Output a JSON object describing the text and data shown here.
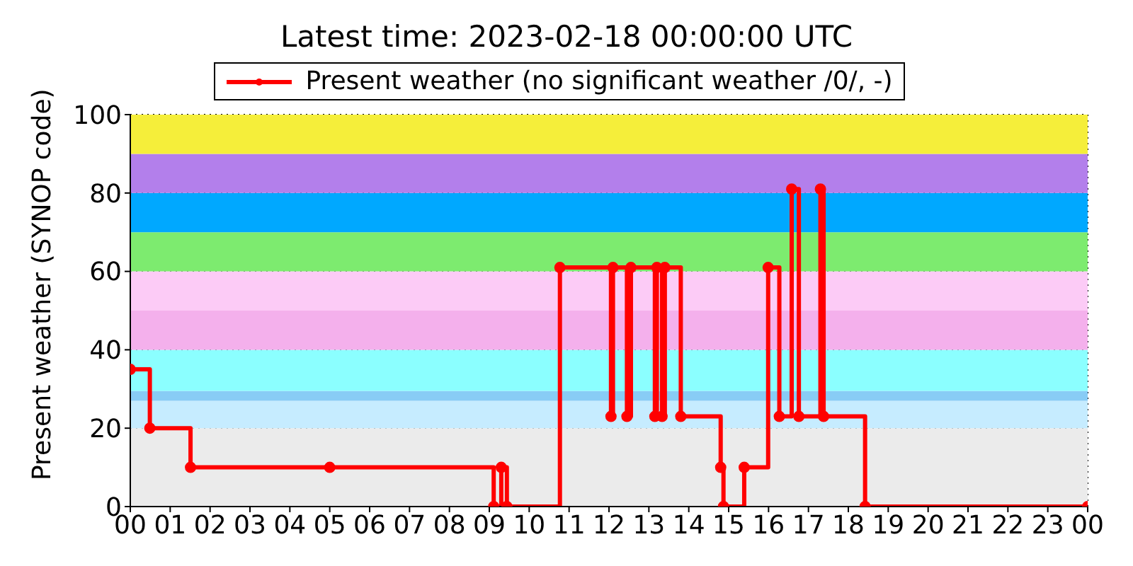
{
  "chart_data": {
    "type": "step",
    "title": "Latest time: 2023-02-18 00:00:00 UTC",
    "ylabel": "Present weather (SYNOP code)",
    "xlim": [
      0,
      24
    ],
    "xticks": [
      {
        "value": 0,
        "label": "00"
      },
      {
        "value": 1,
        "label": "01"
      },
      {
        "value": 2,
        "label": "02"
      },
      {
        "value": 3,
        "label": "03"
      },
      {
        "value": 4,
        "label": "04"
      },
      {
        "value": 5,
        "label": "05"
      },
      {
        "value": 6,
        "label": "06"
      },
      {
        "value": 7,
        "label": "07"
      },
      {
        "value": 8,
        "label": "08"
      },
      {
        "value": 9,
        "label": "09"
      },
      {
        "value": 10,
        "label": "10"
      },
      {
        "value": 11,
        "label": "11"
      },
      {
        "value": 12,
        "label": "12"
      },
      {
        "value": 13,
        "label": "13"
      },
      {
        "value": 14,
        "label": "14"
      },
      {
        "value": 15,
        "label": "15"
      },
      {
        "value": 16,
        "label": "16"
      },
      {
        "value": 17,
        "label": "17"
      },
      {
        "value": 18,
        "label": "18"
      },
      {
        "value": 19,
        "label": "19"
      },
      {
        "value": 20,
        "label": "20"
      },
      {
        "value": 21,
        "label": "21"
      },
      {
        "value": 22,
        "label": "22"
      },
      {
        "value": 23,
        "label": "23"
      },
      {
        "value": 24,
        "label": "00"
      }
    ],
    "ylim": [
      0,
      100
    ],
    "yticks": [
      0,
      20,
      40,
      60,
      80,
      100
    ],
    "grid": true,
    "legend": "top",
    "marker": "circle",
    "line_style": "solid",
    "series": [
      {
        "name": "Present weather (no significant weather /0/, -)",
        "color": "#ff0000",
        "x": [
          0,
          0.49,
          1.51,
          5,
          9.11,
          9.3,
          9.44,
          10.77,
          12.05,
          12.1,
          12.45,
          12.55,
          13.15,
          13.2,
          13.33,
          13.4,
          13.8,
          14.8,
          14.87,
          15.39,
          15.99,
          16.27,
          16.58,
          16.76,
          17.3,
          17.38,
          18.42,
          24
        ],
        "values": [
          35,
          20,
          10,
          10,
          0,
          10,
          0,
          61,
          23,
          61,
          23,
          61,
          23,
          61,
          23,
          61,
          23,
          10,
          0,
          10,
          61,
          23,
          81,
          23,
          81,
          23,
          0,
          0
        ]
      }
    ],
    "bands": [
      {
        "axis": "y",
        "from": 0,
        "to": 20,
        "label": null,
        "color": "#ebebeb"
      },
      {
        "axis": "y",
        "from": 20,
        "to": 27,
        "label": null,
        "color": "#c6ecff"
      },
      {
        "axis": "y",
        "from": 27,
        "to": 29.5,
        "label": null,
        "color": "#88ccf5"
      },
      {
        "axis": "y",
        "from": 29.5,
        "to": 40,
        "label": null,
        "color": "#8bffff"
      },
      {
        "axis": "y",
        "from": 40,
        "to": 50,
        "label": null,
        "color": "#f4b0ec"
      },
      {
        "axis": "y",
        "from": 50,
        "to": 60,
        "label": null,
        "color": "#fccbf6"
      },
      {
        "axis": "y",
        "from": 60,
        "to": 70,
        "label": null,
        "color": "#7deb6f"
      },
      {
        "axis": "y",
        "from": 70,
        "to": 80,
        "label": null,
        "color": "#00a8ff"
      },
      {
        "axis": "y",
        "from": 80,
        "to": 90,
        "label": null,
        "color": "#b37feb"
      },
      {
        "axis": "y",
        "from": 90,
        "to": 100,
        "label": null,
        "color": "#f5ee3a"
      }
    ]
  }
}
